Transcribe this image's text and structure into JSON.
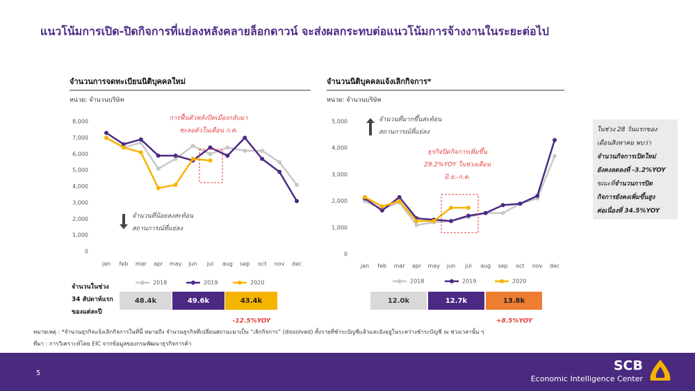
{
  "title": "แนวโน้มการเปิด-ปิดกิจการที่แย่ลงหลังคลายล็อกดาวน์ จะส่งผลกระทบต่อแนวโน้มการจ้างงานในระยะต่อไป",
  "chart_data": [
    {
      "type": "line",
      "title": "จำนวนการจดทะเบียนนิติบุคคลใหม่",
      "unit": "หน่วย: จำนวนบริษัท",
      "categories": [
        "jan",
        "feb",
        "mar",
        "apr",
        "may",
        "jun",
        "jul",
        "aug",
        "sep",
        "oct",
        "nov",
        "dec"
      ],
      "series": [
        {
          "name": "2018",
          "color": "#c8c8c8",
          "values": [
            7000,
            6400,
            6700,
            5100,
            5700,
            6500,
            6000,
            6400,
            6200,
            6200,
            5500,
            4100
          ]
        },
        {
          "name": "2019",
          "color": "#4b2a83",
          "values": [
            7300,
            6600,
            6900,
            5900,
            5900,
            5600,
            6400,
            5900,
            7000,
            5700,
            4900,
            3100
          ]
        },
        {
          "name": "2020",
          "color": "#f5b400",
          "values": [
            7000,
            6400,
            6100,
            3900,
            4100,
            5700,
            5600,
            null,
            null,
            null,
            null,
            null
          ]
        }
      ],
      "ylim": [
        0,
        8000
      ],
      "yticks": [
        0,
        {
          "value": 1000,
          "label": "1,000"
        },
        {
          "value": 2000,
          "label": "2,000"
        },
        {
          "value": 3000,
          "label": "3,000"
        },
        {
          "value": 4000,
          "label": "4,000"
        },
        {
          "value": 5000,
          "label": "5,000"
        },
        {
          "value": 6000,
          "label": "6,000"
        },
        {
          "value": 7000,
          "label": "7,000"
        },
        {
          "value": 8000,
          "label": "8,000"
        }
      ],
      "annotations": [
        {
          "lines": [
            "การฟื้นตัวหลังปิดเมืองกลับมา",
            "ชะลอตัวในเดือน ก.ค."
          ],
          "color": "#e0403f"
        },
        {
          "lines": [
            "จำนวนที่น้อยลงสะท้อน",
            "สถานการณ์ที่แย่ลง"
          ],
          "color": "#444444"
        }
      ],
      "summary": {
        "values": [
          "48.4k",
          "49.6k",
          "43.4k"
        ],
        "colors": [
          "#d9d9d9",
          "#4b2a83",
          "#f5b400"
        ],
        "change": "-12.5%YOY"
      }
    },
    {
      "type": "line",
      "title": "จำนวนนิติบุคคลแจ้งเลิกกิจการ*",
      "unit": "หน่วย: จำนวนบริษัท",
      "categories": [
        "jan",
        "feb",
        "mar",
        "apr",
        "may",
        "jun",
        "jul",
        "aug",
        "sep",
        "oct",
        "nov",
        "dec"
      ],
      "series": [
        {
          "name": "2018",
          "color": "#c8c8c8",
          "values": [
            2000,
            1700,
            1950,
            1100,
            1200,
            1250,
            1400,
            1550,
            1550,
            1900,
            2100,
            3700
          ]
        },
        {
          "name": "2019",
          "color": "#4b2a83",
          "values": [
            2100,
            1650,
            2150,
            1350,
            1300,
            1250,
            1450,
            1550,
            1850,
            1900,
            2200,
            4300
          ]
        },
        {
          "name": "2020",
          "color": "#f5b400",
          "values": [
            2150,
            1800,
            2000,
            1250,
            1250,
            1750,
            1750,
            null,
            null,
            null,
            null,
            null
          ]
        }
      ],
      "ylim": [
        0,
        5000
      ],
      "yticks": [
        0,
        {
          "value": 1000,
          "label": "1,000"
        },
        {
          "value": 2000,
          "label": "2,000"
        },
        {
          "value": 3000,
          "label": "3,000"
        },
        {
          "value": 4000,
          "label": "4,000"
        },
        {
          "value": 5000,
          "label": "5,000"
        }
      ],
      "annotations": [
        {
          "lines": [
            "จำนวนที่มากขึ้นสะท้อน",
            "สถานการณ์ที่แย่ลง"
          ],
          "color": "#444444"
        },
        {
          "lines": [
            "ธุรกิจปิดกิจการเพิ่มขึ้น",
            "29.2%YOY ในช่วงเดือน",
            "มิ.ย.-ก.ค."
          ],
          "color": "#e0403f"
        }
      ],
      "summary": {
        "values": [
          "12.0k",
          "12.7k",
          "13.8k"
        ],
        "colors": [
          "#d9d9d9",
          "#4b2a83",
          "#ed7d31"
        ],
        "change": "+8.5%YOY"
      }
    }
  ],
  "summary_label": [
    "จำนวนในช่วง",
    "34 สัปดาห์แรก",
    "ของแต่ละปี"
  ],
  "side_note": [
    [
      {
        "text": "ในช่วง 28 วันแรกของ",
        "bold": false
      }
    ],
    [
      {
        "text": "เดือนสิงหาคม พบว่า",
        "bold": false
      }
    ],
    [
      {
        "text": "จำนวนกิจการเปิดใหม่",
        "bold": true
      }
    ],
    [
      {
        "text": "ยังคงลดลงที่ -3.2%YOY",
        "bold": true
      }
    ],
    [
      {
        "text": "ขณะที่",
        "bold": false
      },
      {
        "text": "จำนวนการปิด",
        "bold": true
      }
    ],
    [
      {
        "text": "กิจการยังคงเพิ่มขึ้นสูง",
        "bold": true
      }
    ],
    [
      {
        "text": "ต่อเนื่องที่ 34.5%YOY",
        "bold": true
      }
    ]
  ],
  "footnote": "หมายเหตุ : *จำนวนธุรกิจแจ้งเลิกกิจการในที่นี้ หมายถึง จำนวนธุรกิจที่เปลี่ยนสถานะมาเป็น “เลิกกิจการ” (dissolved) ทั้งรายที่ชำระบัญชีแล้วและยังอยู่ในระหว่างชำระบัญชี ณ ช่วงเวลานั้น ๆ",
  "source": "ที่มา : การวิเคราะห์โดย EIC จากข้อมูลของกรมพัฒนาธุรกิจการค้า",
  "page_number": "5",
  "logo": {
    "name": "SCB",
    "subtitle": "Economic Intelligence Center"
  }
}
